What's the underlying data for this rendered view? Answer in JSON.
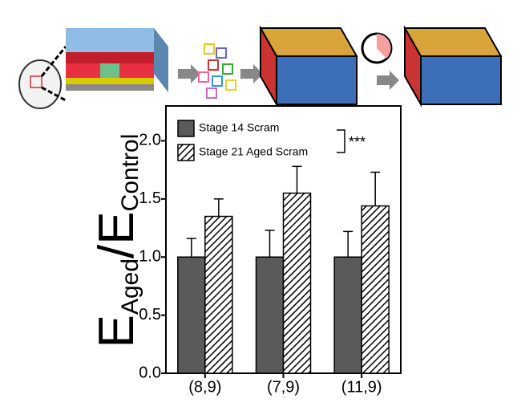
{
  "chart_data": {
    "type": "bar",
    "ylabel_parts": [
      "E",
      "Aged",
      "/E",
      "Control"
    ],
    "categories": [
      "(8,9)",
      "(7,9)",
      "(11,9)"
    ],
    "series": [
      {
        "name": "Stage 14 Scram",
        "color": "#5a5a5a",
        "pattern": "solid",
        "values": [
          1.0,
          1.0,
          1.0
        ],
        "errors": [
          0.16,
          0.23,
          0.22
        ]
      },
      {
        "name": "Stage 21 Aged Scram",
        "color": "#000000",
        "pattern": "hatch",
        "values": [
          1.35,
          1.55,
          1.44
        ],
        "errors": [
          0.15,
          0.23,
          0.29
        ]
      }
    ],
    "annotation": "***",
    "ylim": [
      0,
      2.3
    ],
    "yticks": [
      {
        "value": 0,
        "label": "0.0"
      },
      0.5,
      {
        "value": 1,
        "label": "1.0"
      },
      1.5,
      {
        "value": 2,
        "label": "2.0"
      }
    ]
  }
}
